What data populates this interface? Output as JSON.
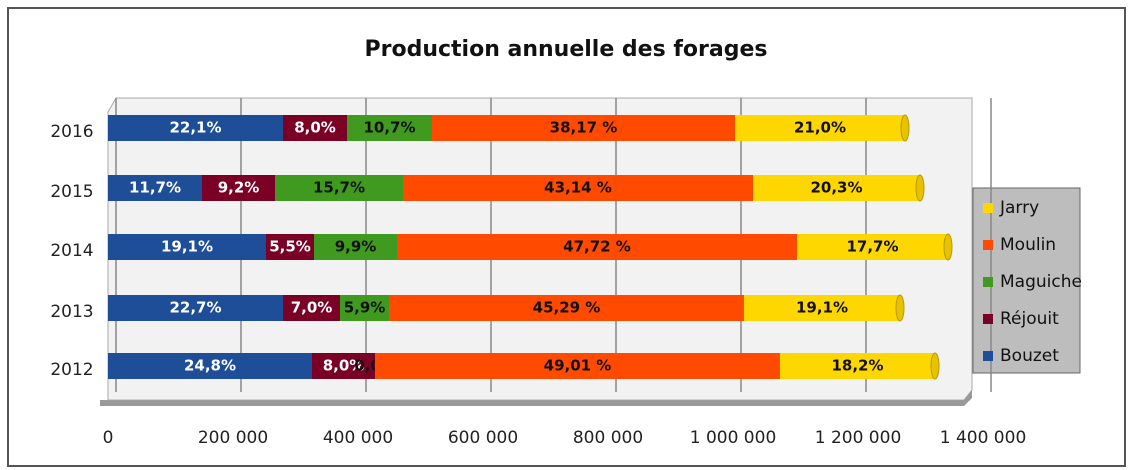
{
  "chart_data": {
    "type": "stacked-bar",
    "orientation": "horizontal",
    "title": "Production annuelle des forages",
    "categories": [
      "2016",
      "2015",
      "2014",
      "2013",
      "2012"
    ],
    "series": [
      {
        "name": "Bouzet",
        "color": "#1f4e99",
        "values": [
          280000,
          150400,
          252800,
          280000,
          326400
        ],
        "value_labels": [
          "22,1%",
          "11,7%",
          "19,1%",
          "22,7%",
          "24,8%"
        ]
      },
      {
        "name": "Réjouit",
        "color": "#7a0026",
        "values": [
          102400,
          116800,
          76800,
          91200,
          100800
        ],
        "value_labels": [
          "8,0%",
          "9,2%",
          "5,5%",
          "7,0%",
          "8,0%"
        ]
      },
      {
        "name": "Maguiche",
        "color": "#3f9a1f",
        "values": [
          136000,
          204800,
          132800,
          78400,
          0
        ],
        "value_labels": [
          "10,7%",
          "15,7%",
          "9,9%",
          "5,9%",
          "0,0%"
        ]
      },
      {
        "name": "Moulin",
        "color": "#ff4a00",
        "values": [
          484800,
          560000,
          640000,
          568000,
          648000
        ],
        "value_labels": [
          "38,17 %",
          "43,14 %",
          "47,72 %",
          "45,29 %",
          "49,01 %"
        ]
      },
      {
        "name": "Jarry",
        "color": "#ffd700",
        "values": [
          272000,
          267200,
          241600,
          249600,
          248000
        ],
        "value_labels": [
          "21,0%",
          "20,3%",
          "17,7%",
          "19,1%",
          "18,2%"
        ]
      }
    ],
    "xlim": [
      0,
      1400000
    ],
    "xticks": [
      0,
      {
        "value": 200000,
        "label": "200 000"
      },
      {
        "value": 400000,
        "label": "400 000"
      },
      {
        "value": 600000,
        "label": "600 000"
      },
      {
        "value": 800000,
        "label": "800 000"
      },
      {
        "value": 1000000,
        "label": "1 000 000"
      },
      {
        "value": 1200000,
        "label": "1 200 000"
      },
      {
        "value": 1400000,
        "label": "1 400 000"
      }
    ],
    "grid": true,
    "legend": "right"
  }
}
